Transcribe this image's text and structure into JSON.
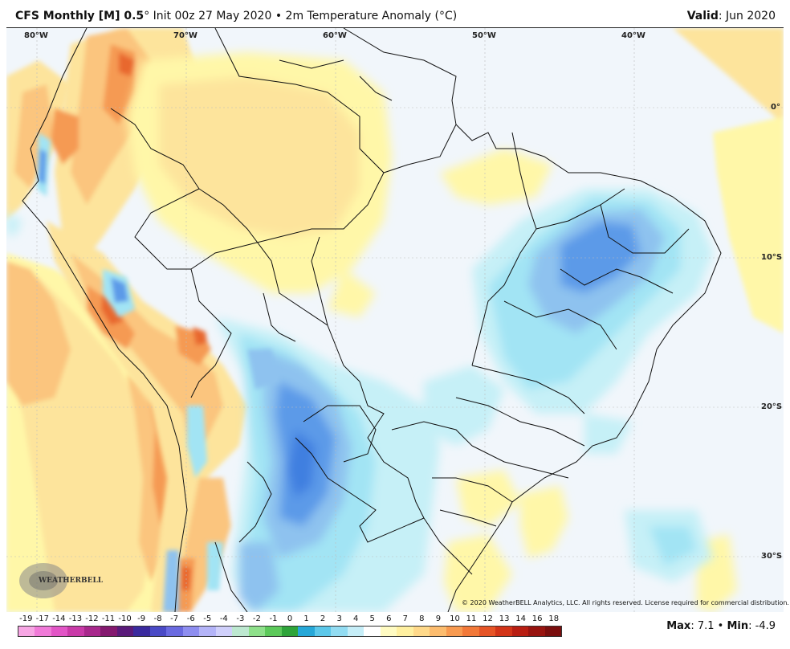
{
  "header": {
    "product": "CFS Monthly [M] 0.5",
    "degree": "°",
    "init": "Init 00z 27 May 2020",
    "bullet": "•",
    "field": "2m Temperature Anomaly (°C)",
    "valid_label": "Valid",
    "valid_value": ": Jun 2020"
  },
  "map": {
    "lon_labels": [
      "80°W",
      "70°W",
      "60°W",
      "50°W",
      "40°W"
    ],
    "lat_labels": [
      "0°",
      "10°S",
      "20°S",
      "30°S"
    ],
    "copyright": "© 2020 WeatherBELL Analytics, LLC. All rights reserved. License required for commercial distribution.",
    "logo_text": "WEATHERBELL",
    "colors": {
      "ocean": "#f1f6fb",
      "warm_1": "#fff7a8",
      "warm_2": "#fde49c",
      "warm_3": "#fbc57e",
      "warm_4": "#f59a52",
      "warm_5": "#e8682e",
      "warm_6": "#c8301b",
      "cool_1": "#c6f0f7",
      "cool_2": "#a2e4f4",
      "cool_3": "#8ec2ef",
      "cool_4": "#5b9ae8",
      "cool_5": "#3f7fe0",
      "border": "#111111"
    }
  },
  "legend": {
    "labels": [
      "-19",
      "-17",
      "-14",
      "-13",
      "-12",
      "-11",
      "-10",
      "-9",
      "-8",
      "-7",
      "-6",
      "-5",
      "-4",
      "-3",
      "-2",
      "-1",
      "0",
      "1",
      "2",
      "3",
      "4",
      "5",
      "6",
      "7",
      "8",
      "9",
      "10",
      "11",
      "12",
      "13",
      "14",
      "16",
      "18"
    ],
    "colors": [
      "#f7a6e4",
      "#f07ad8",
      "#e255c6",
      "#c93aa8",
      "#a8288c",
      "#84196f",
      "#5a1a7a",
      "#3a2a9e",
      "#4a4ac6",
      "#6a6ae0",
      "#8e8ef0",
      "#b4b4f8",
      "#d0d0fb",
      "#bde8d0",
      "#8ee08a",
      "#5cc95a",
      "#2ea43a",
      "#26a8d8",
      "#5cc8ea",
      "#92dcf2",
      "#c6eef8",
      "#ffffff",
      "#fffbc2",
      "#fff0a0",
      "#ffd98a",
      "#fcbc6e",
      "#f89a50",
      "#f27838",
      "#e65426",
      "#d23418",
      "#b81e12",
      "#981410",
      "#7a0e0e"
    ]
  },
  "stats": {
    "max_label": "Max",
    "max_value": ": 7.1",
    "bullet": "•",
    "min_label": "Min",
    "min_value": ": -4.9"
  }
}
